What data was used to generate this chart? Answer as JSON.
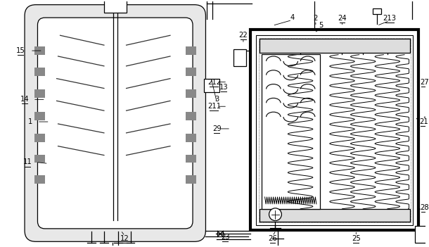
{
  "background_color": "#ffffff",
  "line_color": "#000000",
  "fig_width": 6.1,
  "fig_height": 3.51,
  "dpi": 100
}
